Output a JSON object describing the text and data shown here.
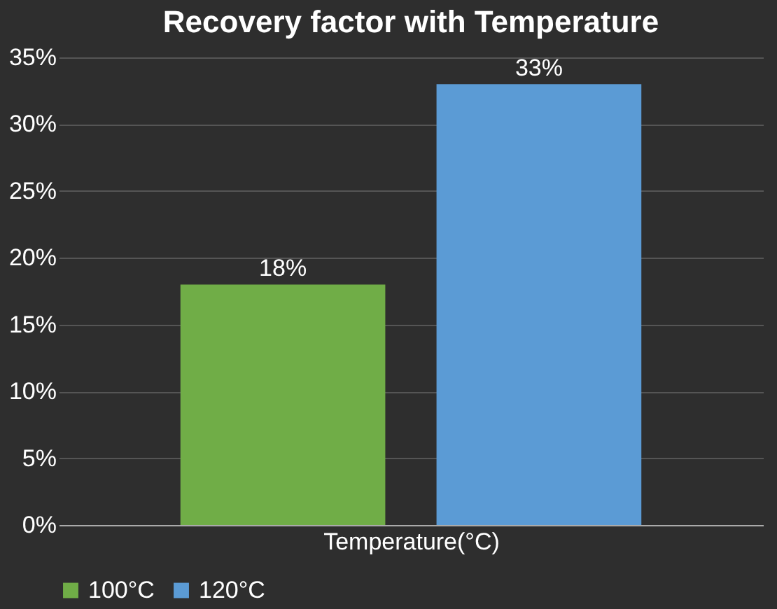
{
  "chart_data": {
    "type": "bar",
    "title": "Recovery factor with Temperature",
    "xlabel": "Temperature(°C)",
    "categories": [
      null
    ],
    "series": [
      {
        "name": "100°C",
        "color": "#70ad47",
        "values": [
          18
        ],
        "value_labels": [
          "18%"
        ]
      },
      {
        "name": "120°C",
        "color": "#5b9bd5",
        "values": [
          33
        ],
        "value_labels": [
          "33%"
        ]
      }
    ],
    "ylim": [
      0,
      35
    ],
    "yticks": [
      {
        "value": 0,
        "label": "0%"
      },
      {
        "value": 5,
        "label": "5%"
      },
      {
        "value": 10,
        "label": "10%"
      },
      {
        "value": 15,
        "label": "15%"
      },
      {
        "value": 20,
        "label": "20%"
      },
      {
        "value": 25,
        "label": "25%"
      },
      {
        "value": 30,
        "label": "30%"
      },
      {
        "value": 35,
        "label": "35%"
      }
    ],
    "grid": "y",
    "legend": "bottom",
    "tick_labels": "y"
  }
}
